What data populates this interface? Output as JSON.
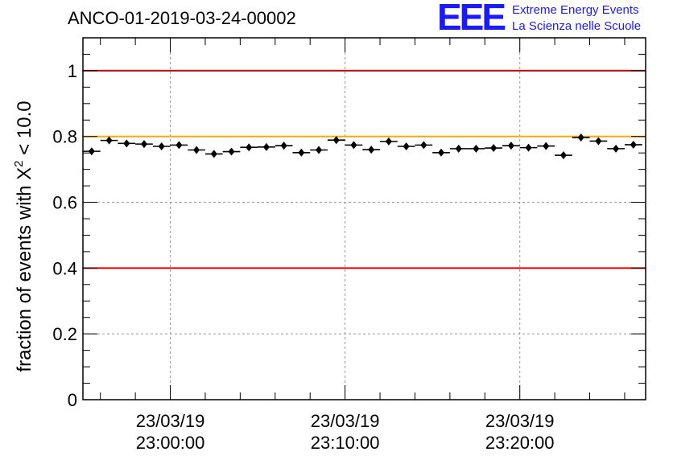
{
  "run_title": "ANCO-01-2019-03-24-00002",
  "logo": {
    "mark": "EEE",
    "line1": "Extreme Energy Events",
    "line2": "La Scienza nelle Scuole"
  },
  "colors": {
    "threshold_red": "#e00000",
    "threshold_orange": "#ffaa00",
    "grid": "#999999",
    "marker": "#000000"
  },
  "chart_data": {
    "type": "scatter",
    "title": "ANCO-01-2019-03-24-00002",
    "xlabel": "",
    "ylabel": "fraction of events with χ² < 10.0",
    "ylabel_parts": {
      "prefix": "fraction of events with",
      "symbol": "X",
      "exponent": "2",
      "suffix": "< 10.0"
    },
    "xlim": [
      -5,
      27.2
    ],
    "ylim": [
      0,
      1.1
    ],
    "x_unit": "minutes after 23:00:00 on 23/03/19",
    "x_ticks": [
      {
        "x": 0,
        "date": "23/03/19",
        "time": "23:00:00"
      },
      {
        "x": 10,
        "date": "23/03/19",
        "time": "23:10:00"
      },
      {
        "x": 20,
        "date": "23/03/19",
        "time": "23:20:00"
      }
    ],
    "y_ticks": [
      {
        "y": 0,
        "label": "0"
      },
      {
        "y": 0.2,
        "label": "0.2"
      },
      {
        "y": 0.4,
        "label": "0.4"
      },
      {
        "y": 0.6,
        "label": "0.6"
      },
      {
        "y": 0.8,
        "label": "0.8"
      },
      {
        "y": 1.0,
        "label": "1"
      }
    ],
    "reference_lines": [
      {
        "y": 1.0,
        "color": "#e00000"
      },
      {
        "y": 0.4,
        "color": "#e00000"
      },
      {
        "y": 0.8,
        "color": "#ffaa00"
      }
    ],
    "bin_half_width": 0.5,
    "series": [
      {
        "name": "fraction",
        "x": [
          -4.5,
          -3.5,
          -2.5,
          -1.5,
          -0.5,
          0.5,
          1.5,
          2.5,
          3.5,
          4.5,
          5.5,
          6.5,
          7.5,
          8.5,
          9.5,
          10.5,
          11.5,
          12.5,
          13.5,
          14.5,
          15.5,
          16.5,
          17.5,
          18.5,
          19.5,
          20.5,
          21.5,
          22.5,
          23.5,
          24.5,
          25.5,
          26.5
        ],
        "y": [
          0.755,
          0.788,
          0.779,
          0.777,
          0.77,
          0.774,
          0.759,
          0.747,
          0.754,
          0.767,
          0.768,
          0.772,
          0.751,
          0.759,
          0.789,
          0.774,
          0.76,
          0.785,
          0.77,
          0.774,
          0.751,
          0.763,
          0.763,
          0.765,
          0.772,
          0.766,
          0.771,
          0.743,
          0.797,
          0.786,
          0.763,
          0.775
        ]
      }
    ]
  }
}
